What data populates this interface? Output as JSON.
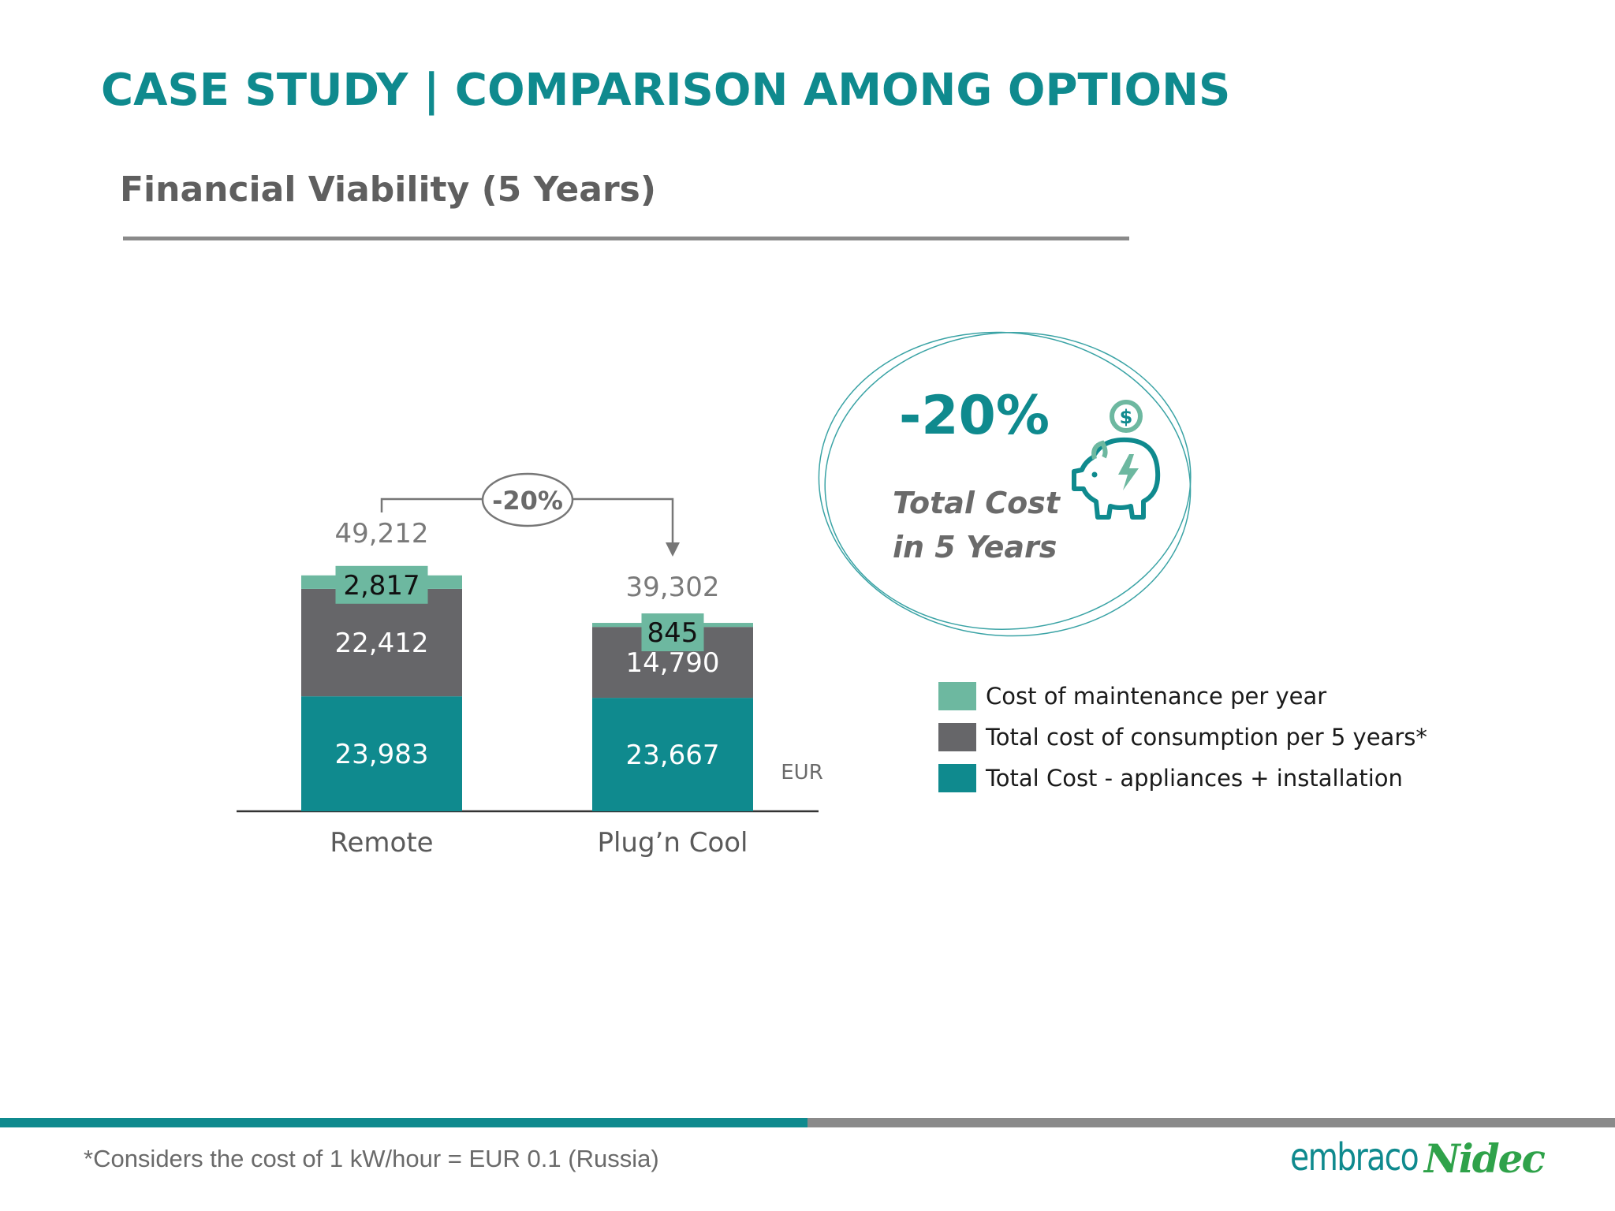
{
  "slide": {
    "title": "CASE STUDY | COMPARISON AMONG OPTIONS",
    "subtitle": "Financial Viability (5 Years)",
    "footnote": "*Considers the cost of 1 kW/hour = EUR 0.1 (Russia)"
  },
  "callout": {
    "percent": "-20%",
    "line1": "Total Cost",
    "line2": "in 5 Years",
    "icon": "piggy-bank-dollar-icon"
  },
  "logos": {
    "embraco": "embraco",
    "nidec": "Nidec"
  },
  "colors": {
    "teal": "#0f8a8e",
    "grey": "#666669",
    "mint": "#6db8a0",
    "title": "#0f8a8e"
  },
  "chart_data": {
    "type": "bar",
    "stacked": true,
    "categories": [
      "Remote",
      "Plug’n Cool"
    ],
    "series": [
      {
        "name": "Total Cost - appliances + installation",
        "values": [
          23983,
          23667
        ],
        "labels": [
          "23,983",
          "23,667"
        ],
        "color": "#0f8a8e"
      },
      {
        "name": "Total cost of consumption per 5 years*",
        "values": [
          22412,
          14790
        ],
        "labels": [
          "22,412",
          "14,790"
        ],
        "color": "#666669"
      },
      {
        "name": "Cost of maintenance per year",
        "values": [
          2817,
          845
        ],
        "labels": [
          "2,817",
          "845"
        ],
        "color": "#6db8a0"
      }
    ],
    "totals": [
      49212,
      39302
    ],
    "total_labels": [
      "49,212",
      "39,302"
    ],
    "unit": "EUR",
    "comparison_label": "-20%",
    "legend_order": [
      "Cost of maintenance per year",
      "Total cost of consumption per 5 years*",
      "Total Cost - appliances + installation"
    ],
    "grid": false,
    "ylim": [
      0,
      50000
    ]
  }
}
